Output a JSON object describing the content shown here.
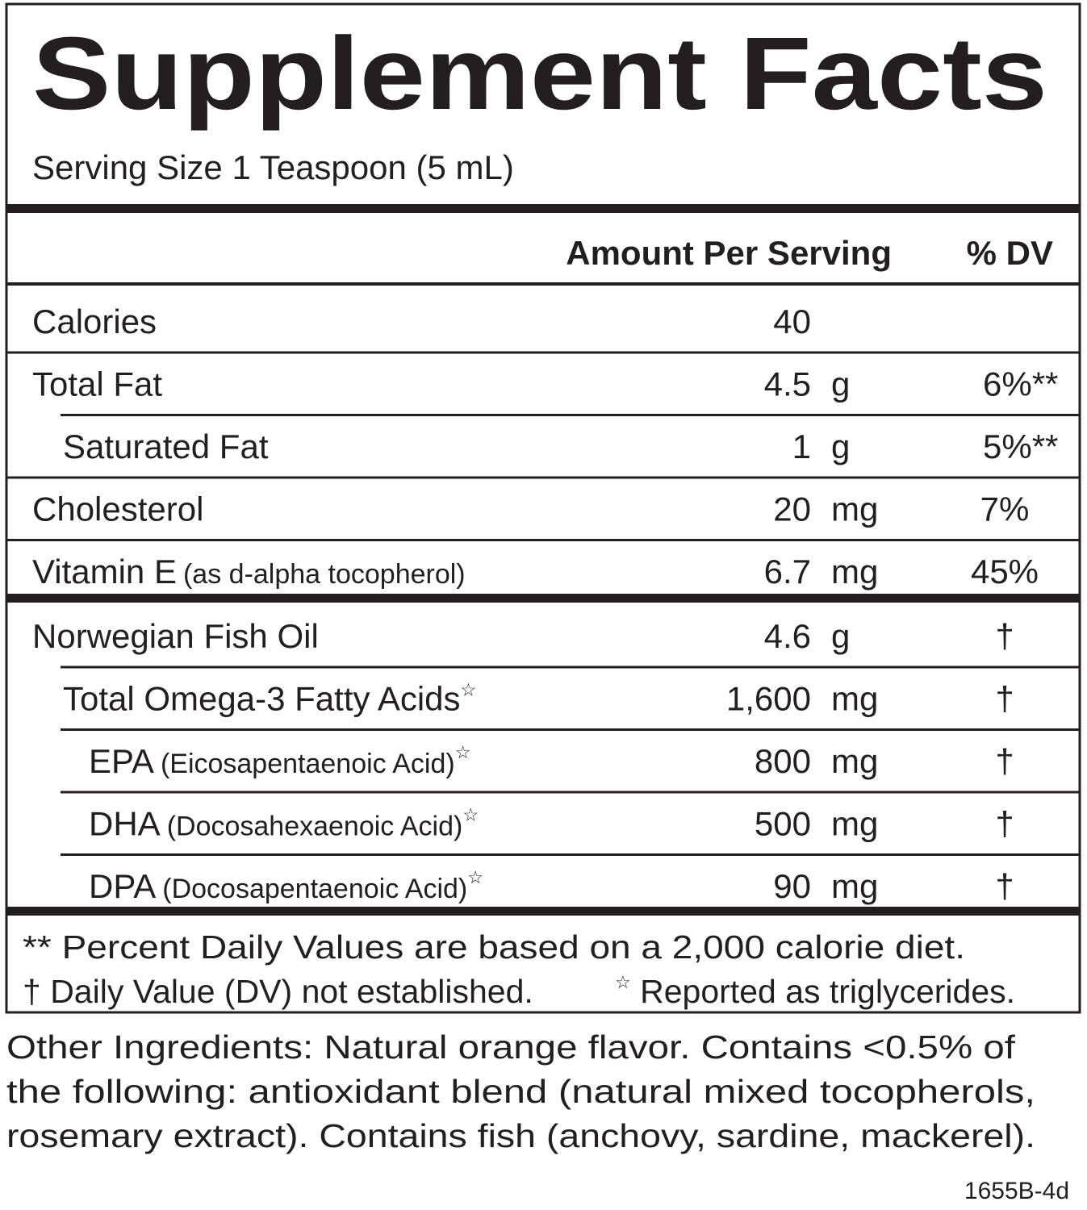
{
  "header": {
    "title": "Supplement Facts",
    "serving_size": "Serving Size 1 Teaspoon (5 mL)"
  },
  "table": {
    "columns": {
      "amount": "Amount Per Serving",
      "dv": "% DV"
    },
    "sections": [
      {
        "rows": [
          {
            "name": "Calories",
            "amount": "40"
          },
          {
            "name": "Total Fat",
            "amount": "4.5",
            "unit": "g",
            "dv": "6%**"
          },
          {
            "name": "Saturated Fat",
            "indent": 1,
            "amount": "1",
            "unit": "g",
            "dv": "5%**"
          },
          {
            "name": "Cholesterol",
            "amount": "20",
            "unit": "mg",
            "dv": "7%"
          },
          {
            "name": "Vitamin E",
            "note": "(as d-alpha tocopherol)",
            "amount": "6.7",
            "unit": "mg",
            "dv": "45%"
          }
        ]
      },
      {
        "rows": [
          {
            "name": "Norwegian Fish Oil",
            "amount": "4.6",
            "unit": "g",
            "dv": "†"
          },
          {
            "name": "Total Omega-3 Fatty Acids",
            "star": "☆",
            "indent": 1,
            "amount": "1,600",
            "unit": "mg",
            "dv": "†"
          },
          {
            "name": "EPA",
            "note": "(Eicosapentaenoic Acid)",
            "star": "☆",
            "indent": 2,
            "amount": "800",
            "unit": "mg",
            "dv": "†"
          },
          {
            "name": "DHA",
            "note": "(Docosahexaenoic Acid)",
            "star": "☆",
            "indent": 2,
            "amount": "500",
            "unit": "mg",
            "dv": "†"
          },
          {
            "name": "DPA",
            "note": "(Docosapentaenoic Acid)",
            "star": "☆",
            "indent": 2,
            "amount": "90",
            "unit": "mg",
            "dv": "†"
          }
        ]
      }
    ]
  },
  "footnotes": {
    "line1": "** Percent Daily Values are based on a 2,000 calorie diet.",
    "line2": "† Daily Value (DV) not established.",
    "star_symbol": "☆",
    "star_note": "Reported as triglycerides."
  },
  "other_ingredients": [
    "Other Ingredients: Natural orange flavor. Contains <0.5% of",
    "the following: antioxidant blend (natural mixed tocopherols,",
    "rosemary extract). Contains fish (anchovy, sardine, mackerel)."
  ],
  "code": "1655B-4d"
}
